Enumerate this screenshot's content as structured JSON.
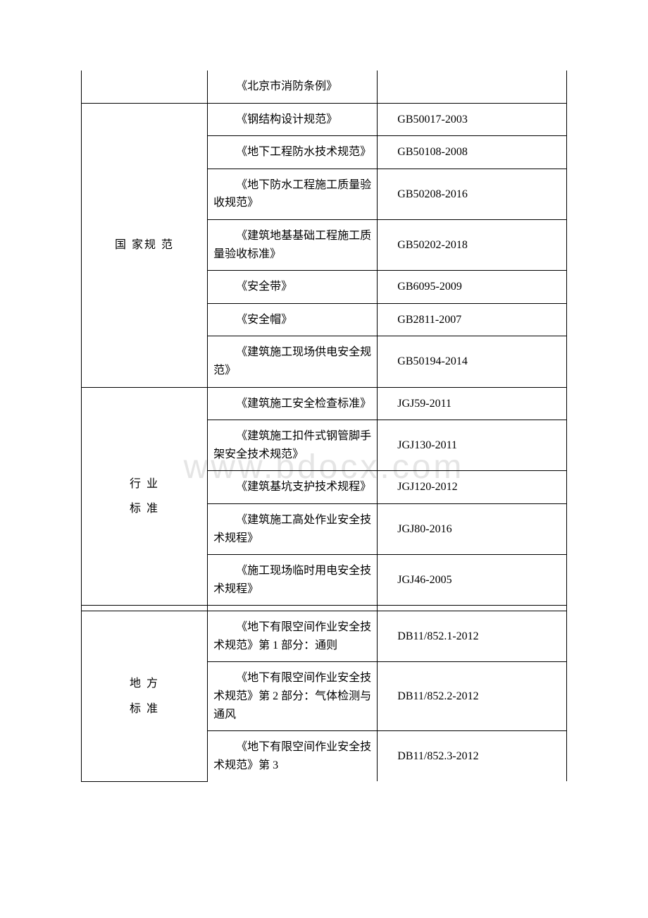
{
  "watermark": "www.bdocx.com",
  "table": {
    "sections": [
      {
        "category": "",
        "rows": [
          {
            "name": "《北京市消防条例》",
            "code": ""
          }
        ]
      },
      {
        "category": "国 家规 范",
        "rows": [
          {
            "name": "《钢结构设计规范》",
            "code": "GB50017-2003"
          },
          {
            "name": "《地下工程防水技术规范》",
            "code": "GB50108-2008"
          },
          {
            "name": "《地下防水工程施工质量验收规范》",
            "code": "GB50208-2016"
          },
          {
            "name": "《建筑地基基础工程施工质量验收标准》",
            "code": "GB50202-2018"
          },
          {
            "name": "《安全带》",
            "code": "GB6095-2009"
          },
          {
            "name": "《安全帽》",
            "code": "GB2811-2007"
          },
          {
            "name": "《建筑施工现场供电安全规范》",
            "code": "GB50194-2014"
          }
        ]
      },
      {
        "category": "行 业\n标 准",
        "rows": [
          {
            "name": "《建筑施工安全检查标准》",
            "code": "JGJ59-2011"
          },
          {
            "name": "《建筑施工扣件式钢管脚手架安全技术规范》",
            "code": "JGJ130-2011"
          },
          {
            "name": "《建筑基坑支护技术规程》",
            "code": "JGJ120-2012"
          },
          {
            "name": "《建筑施工高处作业安全技术规程》",
            "code": "JGJ80-2016"
          },
          {
            "name": "《施工现场临时用电安全技术规程》",
            "code": "JGJ46-2005"
          }
        ]
      },
      {
        "category": "地 方\n标 准",
        "rows": [
          {
            "name": "《地下有限空间作业安全技术规范》第 1 部分：通则",
            "code": "DB11/852.1-2012"
          },
          {
            "name": "《地下有限空间作业安全技术规范》第 2 部分：气体检测与通风",
            "code": "DB11/852.2-2012"
          },
          {
            "name": "《地下有限空间作业安全技术规范》第 3",
            "code": "DB11/852.3-2012"
          }
        ]
      }
    ]
  }
}
